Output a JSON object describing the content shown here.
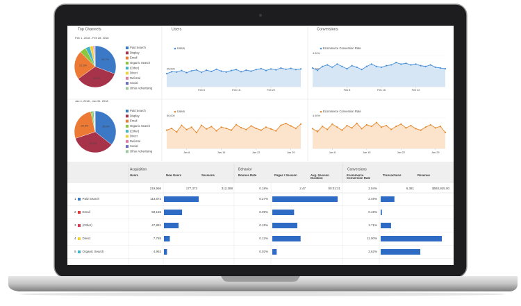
{
  "top_channels_title": "Top Channels",
  "users_title": "Users",
  "conversions_title": "Conversions",
  "legend": [
    {
      "name": "Paid Search",
      "color": "#3b78c6"
    },
    {
      "name": "Display",
      "color": "#a6334a"
    },
    {
      "name": "Email",
      "color": "#ec7a35"
    },
    {
      "name": "Organic Search",
      "color": "#8cc63f"
    },
    {
      "name": "(Other)",
      "color": "#42b3c9"
    },
    {
      "name": "Direct",
      "color": "#f2d23b"
    },
    {
      "name": "Referral",
      "color": "#e07aa6"
    },
    {
      "name": "Social",
      "color": "#6b6bc4"
    },
    {
      "name": "Other Advertising",
      "color": "#9fc79f"
    }
  ],
  "rows": [
    {
      "date_range": "Feb 1, 2018 - Feb 28, 2018",
      "pie": {
        "values": [
          30.7,
          34.4,
          22.3,
          5.0,
          3.5,
          2.5,
          1.0,
          0.4,
          0.2
        ],
        "value_labels": [
          "30.7%",
          "34.4%",
          "22.3%",
          null,
          null,
          null,
          null,
          null,
          null
        ]
      },
      "categories": [
        null,
        null,
        null,
        null,
        null,
        null,
        null,
        "Feb 8",
        null,
        null,
        null,
        null,
        null,
        null,
        "Feb 15",
        null,
        null,
        null,
        null,
        null,
        null,
        "Feb 22",
        null,
        null,
        null,
        null,
        null,
        null
      ],
      "users": {
        "name": "Users",
        "color": "#4a90d9",
        "fill": "#d6e6f5",
        "ylim": [
          0,
          50000
        ],
        "yticks": [
          {
            "value": 25000,
            "label": "25,000"
          }
        ],
        "values": [
          21000,
          24000,
          23500,
          26000,
          22500,
          25500,
          27000,
          23000,
          26500,
          24500,
          28000,
          25000,
          23500,
          26000,
          27500,
          24000,
          26500,
          25000,
          27500,
          29000,
          26000,
          28500,
          27000,
          30000,
          28000,
          29500,
          27500,
          28500
        ]
      },
      "conversions": {
        "name": "Ecommerce Conversion Rate",
        "color": "#4a90d9",
        "fill": "#d6e6f5",
        "ylim": [
          0,
          4
        ],
        "yticks": [
          {
            "value": 4,
            "label": "4.00%"
          },
          {
            "value": 2,
            "label": "2.00%"
          }
        ],
        "values": [
          2.4,
          2.1,
          2.6,
          2.8,
          2.5,
          2.9,
          2.6,
          2.3,
          2.7,
          2.5,
          2.2,
          2.6,
          2.9,
          2.6,
          2.5,
          2.7,
          2.8,
          3.1,
          2.9,
          3.0,
          2.8,
          2.9,
          2.7,
          2.6,
          2.8,
          2.5,
          2.4,
          2.3
        ]
      }
    },
    {
      "date_range": "Jan 4, 2018 - Jan 31, 2018",
      "pie": {
        "values": [
          35.6,
          34.3,
          26.6,
          1.4,
          0.9,
          0.5,
          0.4,
          0.2,
          0.1
        ],
        "value_labels": [
          "35.6%",
          "34.3%",
          "26.6%",
          null,
          null,
          null,
          null,
          null,
          null
        ]
      },
      "categories": [
        null,
        null,
        null,
        null,
        "Jan 8",
        null,
        null,
        null,
        null,
        null,
        null,
        "Jan 15",
        null,
        null,
        null,
        null,
        null,
        null,
        "Jan 22",
        null,
        null,
        null,
        null,
        null,
        null,
        "Jan 29",
        null,
        null
      ],
      "users": {
        "name": "Users",
        "color": "#e8892e",
        "fill": "#fbe3cc",
        "ylim": [
          0,
          50000
        ],
        "yticks": [
          {
            "value": 50000,
            "label": "50,000"
          },
          {
            "value": 25000,
            "label": "25,000"
          }
        ],
        "values": [
          30000,
          33000,
          27000,
          38000,
          31000,
          35000,
          26000,
          38000,
          32000,
          36000,
          29000,
          35000,
          33000,
          30000,
          39000,
          34000,
          31000,
          37000,
          33000,
          30000,
          35000,
          32000,
          29000,
          38000,
          41000,
          37000,
          33000,
          40000
        ]
      },
      "conversions": {
        "name": "Ecommerce Conversion Rate",
        "color": "#e8892e",
        "fill": "#fbe3cc",
        "ylim": [
          0,
          4
        ],
        "yticks": [
          {
            "value": 4,
            "label": "4.00%"
          },
          {
            "value": 2,
            "label": "2.00%"
          }
        ],
        "values": [
          2.6,
          2.2,
          2.9,
          2.5,
          3.2,
          2.8,
          2.4,
          3.0,
          2.7,
          3.3,
          2.6,
          3.1,
          2.9,
          3.4,
          2.8,
          3.0,
          2.5,
          2.9,
          3.2,
          2.7,
          3.0,
          2.6,
          2.4,
          2.8,
          3.1,
          2.7,
          2.9,
          2.1
        ]
      }
    }
  ],
  "table": {
    "groups": [
      "Acquisition",
      "Behavior",
      "Conversions"
    ],
    "columns": [
      "Users",
      "New Users",
      "Sessions",
      "Bounce Rate",
      "Pages / Session",
      "Avg. Session Duration",
      "Ecommerce Conversion Rate",
      "Transactions",
      "Revenue"
    ],
    "totals": [
      "219,956",
      "177,373",
      "312,388",
      "0.18%",
      "2.47",
      "00:01:31",
      "2.04%",
      "6,381",
      "$593,925.00"
    ],
    "bar_color": "#2d6bc4",
    "rows": [
      {
        "rank": "1",
        "channel": "Paid Search",
        "color": "#3b78c6",
        "users": "113,672",
        "sessions": 159000,
        "bounce_rate": "0.27%",
        "pages_per_session": 3.0,
        "conversion_rate": "2.46%",
        "transactions": 690
      },
      {
        "rank": "2",
        "channel": "Email",
        "color": "#d63c3c",
        "users": "59,155",
        "sessions": 83000,
        "bounce_rate": "0.09%",
        "pages_per_session": 1.0,
        "conversion_rate": "0.46%",
        "transactions": 60
      },
      {
        "rank": "3",
        "channel": "(Other)",
        "color": "#c8404f",
        "users": "47,881",
        "sessions": 67000,
        "bounce_rate": "0.15%",
        "pages_per_session": 1.15,
        "conversion_rate": "1.71%",
        "transactions": 520
      },
      {
        "rank": "4",
        "channel": "Direct",
        "color": "#f2d23b",
        "users": "7,765",
        "sessions": 27000,
        "bounce_rate": "0.12%",
        "pages_per_session": 1.3,
        "conversion_rate": "11.00%",
        "transactions": 3070
      },
      {
        "rank": "5",
        "channel": "Organic Search",
        "color": "#42b3c9",
        "users": "4,952",
        "sessions": 14000,
        "bounce_rate": "0.02%",
        "pages_per_session": 0.2,
        "conversion_rate": "3.62%",
        "transactions": 1990
      }
    ]
  }
}
